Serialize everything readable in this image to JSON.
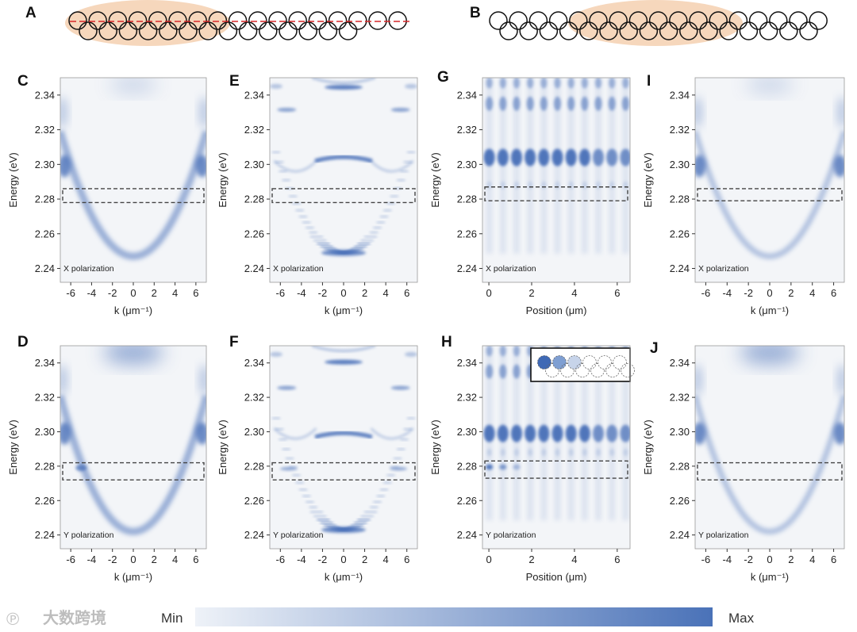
{
  "figure": {
    "top_labels": [
      "A",
      "B"
    ],
    "colorbar": {
      "min_label": "Min",
      "max_label": "Max",
      "low_color": "#eef2f8",
      "high_color": "#4a72b8"
    },
    "watermark": "大数跨境",
    "accent_line_color": "#d62728",
    "highlight_color": "#f3c9a5",
    "chain_counts": {
      "top_row": 13,
      "bottom_row": 13,
      "a_top_row": 17,
      "a_bottom_row": 14
    }
  },
  "chart_data": [
    {
      "panel": "C",
      "type": "heatmap",
      "mode": "dispersion",
      "note": "X polarization",
      "xlabel": "k (μm⁻¹)",
      "ylabel": "Energy (eV)",
      "xlim": [
        -7,
        7
      ],
      "ylim": [
        2.232,
        2.35
      ],
      "xticks": [
        "-6",
        "-4",
        "-2",
        "0",
        "2",
        "4",
        "6"
      ],
      "yticks": [
        "2.24",
        "2.26",
        "2.28",
        "2.30",
        "2.32",
        "2.34"
      ],
      "roi": [
        2.278,
        2.286
      ]
    },
    {
      "panel": "D",
      "type": "heatmap",
      "mode": "dispersion",
      "note": "Y polarization",
      "xlabel": "k (μm⁻¹)",
      "ylabel": "Energy (eV)",
      "xlim": [
        -7,
        7
      ],
      "ylim": [
        2.232,
        2.35
      ],
      "xticks": [
        "-6",
        "-4",
        "-2",
        "0",
        "2",
        "4",
        "6"
      ],
      "yticks": [
        "2.24",
        "2.26",
        "2.28",
        "2.30",
        "2.32",
        "2.34"
      ],
      "roi": [
        2.272,
        2.282
      ]
    },
    {
      "panel": "E",
      "type": "heatmap",
      "mode": "lattice",
      "note": "X polarization",
      "xlabel": "k (μm⁻¹)",
      "ylabel": "Energy (eV)",
      "xlim": [
        -7,
        7
      ],
      "ylim": [
        2.232,
        2.35
      ],
      "xticks": [
        "-6",
        "-4",
        "-2",
        "0",
        "2",
        "4",
        "6"
      ],
      "yticks": [
        "2.24",
        "2.26",
        "2.28",
        "2.30",
        "2.32",
        "2.34"
      ],
      "roi": [
        2.278,
        2.286
      ]
    },
    {
      "panel": "F",
      "type": "heatmap",
      "mode": "lattice",
      "note": "Y polarization",
      "xlabel": "k (μm⁻¹)",
      "ylabel": "Energy (eV)",
      "xlim": [
        -7,
        7
      ],
      "ylim": [
        2.232,
        2.35
      ],
      "xticks": [
        "-6",
        "-4",
        "-2",
        "0",
        "2",
        "4",
        "6"
      ],
      "yticks": [
        "2.24",
        "2.26",
        "2.28",
        "2.30",
        "2.32",
        "2.34"
      ],
      "roi": [
        2.272,
        2.282
      ]
    },
    {
      "panel": "G",
      "type": "heatmap",
      "mode": "realspace",
      "note": "X polarization",
      "xlabel": "Position (μm)",
      "ylabel": "Energy (eV)",
      "xlim": [
        -0.3,
        6.6
      ],
      "ylim": [
        2.232,
        2.35
      ],
      "xticks": [
        "0",
        "2",
        "4",
        "6"
      ],
      "yticks": [
        "2.24",
        "2.26",
        "2.28",
        "2.30",
        "2.32",
        "2.34"
      ],
      "roi": [
        2.279,
        2.287
      ]
    },
    {
      "panel": "H",
      "type": "heatmap",
      "mode": "realspace",
      "note": "Y polarization",
      "xlabel": "Position (μm)",
      "ylabel": "Energy (eV)",
      "xlim": [
        -0.3,
        6.6
      ],
      "ylim": [
        2.232,
        2.35
      ],
      "xticks": [
        "0",
        "2",
        "4",
        "6"
      ],
      "yticks": [
        "2.24",
        "2.26",
        "2.28",
        "2.30",
        "2.32",
        "2.34"
      ],
      "roi": [
        2.273,
        2.283
      ]
    },
    {
      "panel": "I",
      "type": "heatmap",
      "mode": "dispersion",
      "note": "X polarization",
      "xlabel": "k (μm⁻¹)",
      "ylabel": "Energy (eV)",
      "xlim": [
        -7,
        7
      ],
      "ylim": [
        2.232,
        2.35
      ],
      "xticks": [
        "-6",
        "-4",
        "-2",
        "0",
        "2",
        "4",
        "6"
      ],
      "yticks": [
        "2.24",
        "2.26",
        "2.28",
        "2.30",
        "2.32",
        "2.34"
      ],
      "roi": [
        2.279,
        2.286
      ]
    },
    {
      "panel": "J",
      "type": "heatmap",
      "mode": "dispersion",
      "note": "Y polarization",
      "xlabel": "k (μm⁻¹)",
      "ylabel": "Energy (eV)",
      "xlim": [
        -7,
        7
      ],
      "ylim": [
        2.232,
        2.35
      ],
      "xticks": [
        "-6",
        "-4",
        "-2",
        "0",
        "2",
        "4",
        "6"
      ],
      "yticks": [
        "2.24",
        "2.26",
        "2.28",
        "2.30",
        "2.32",
        "2.34"
      ],
      "roi": [
        2.272,
        2.282
      ]
    }
  ]
}
